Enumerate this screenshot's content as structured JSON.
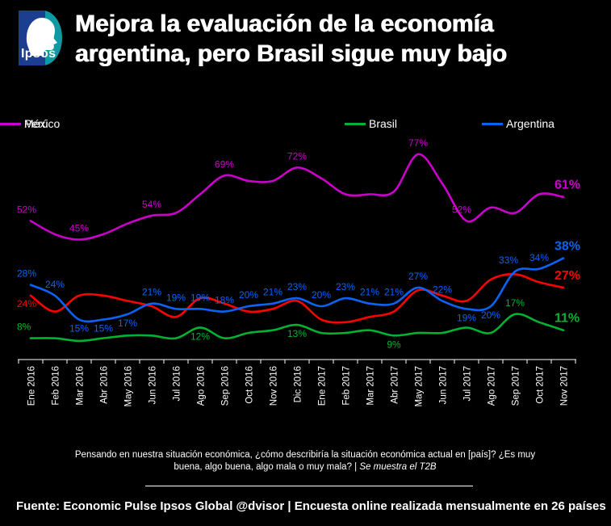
{
  "header": {
    "logo_text": "Ipsos",
    "title_line1": "Mejora la evaluación de la economía",
    "title_line2": "argentina, pero Brasil sigue muy bajo"
  },
  "chart_data": {
    "type": "line",
    "categories": [
      "Ene 2016",
      "Feb 2016",
      "Mar 2016",
      "Abr 2016",
      "May 2016",
      "Jun 2016",
      "Jul 2016",
      "Ago 2016",
      "Sep 2016",
      "Oct 2016",
      "Nov 2016",
      "Dic 2016",
      "Ene 2017",
      "Feb 2017",
      "Mar 2017",
      "Abr 2017",
      "May 2017",
      "Jun 2017",
      "Jul 2017",
      "Ago 2017",
      "Sep 2017",
      "Oct 2017",
      "Nov 2017"
    ],
    "ylim": [
      0,
      85
    ],
    "grid": false,
    "legend_position": "top",
    "background": "#000000",
    "axis_color": "#ffffff",
    "x_label_rotation": -90,
    "draw_order": [
      0,
      2,
      3,
      1
    ],
    "series": [
      {
        "name": "Brasil",
        "color": "#00b232",
        "values": [
          8,
          8,
          7,
          8,
          9,
          9,
          8,
          12,
          8,
          10,
          11,
          13,
          10,
          10,
          11,
          9,
          10,
          10,
          12,
          10,
          17,
          14,
          11
        ],
        "labels": [
          {
            "i": 0,
            "t": "8%",
            "pos": "above"
          },
          {
            "i": 7,
            "t": "12%",
            "pos": "below"
          },
          {
            "i": 11,
            "t": "13%",
            "pos": "below"
          },
          {
            "i": 15,
            "t": "9%",
            "pos": "below"
          },
          {
            "i": 20,
            "t": "17%",
            "pos": "above"
          },
          {
            "i": 22,
            "t": "11%",
            "pos": "end"
          }
        ]
      },
      {
        "name": "Argentina",
        "color": "#0b63f5",
        "values": [
          28,
          24,
          15,
          15,
          17,
          21,
          19,
          19,
          18,
          20,
          21,
          23,
          20,
          23,
          21,
          21,
          27,
          22,
          19,
          20,
          33,
          34,
          38
        ],
        "labels": [
          {
            "i": 0,
            "t": "28%",
            "pos": "above"
          },
          {
            "i": 1,
            "t": "24%",
            "pos": "above"
          },
          {
            "i": 2,
            "t": "15%",
            "pos": "below"
          },
          {
            "i": 3,
            "t": "15%",
            "pos": "below"
          },
          {
            "i": 4,
            "t": "17%",
            "pos": "below"
          },
          {
            "i": 5,
            "t": "21%",
            "pos": "above"
          },
          {
            "i": 6,
            "t": "19%",
            "pos": "above"
          },
          {
            "i": 7,
            "t": "19%",
            "pos": "above"
          },
          {
            "i": 8,
            "t": "18%",
            "pos": "above"
          },
          {
            "i": 9,
            "t": "20%",
            "pos": "above"
          },
          {
            "i": 10,
            "t": "21%",
            "pos": "above"
          },
          {
            "i": 11,
            "t": "23%",
            "pos": "above"
          },
          {
            "i": 12,
            "t": "20%",
            "pos": "above"
          },
          {
            "i": 13,
            "t": "23%",
            "pos": "above"
          },
          {
            "i": 14,
            "t": "21%",
            "pos": "above"
          },
          {
            "i": 15,
            "t": "21%",
            "pos": "above"
          },
          {
            "i": 16,
            "t": "27%",
            "pos": "above"
          },
          {
            "i": 17,
            "t": "22%",
            "pos": "above"
          },
          {
            "i": 18,
            "t": "19%",
            "pos": "below"
          },
          {
            "i": 19,
            "t": "20%",
            "pos": "below"
          },
          {
            "i": 20,
            "t": "33%",
            "pos": "above",
            "dx": -8
          },
          {
            "i": 21,
            "t": "34%",
            "pos": "above"
          },
          {
            "i": 22,
            "t": "38%",
            "pos": "end"
          }
        ]
      },
      {
        "name": "México",
        "color": "#fe0000",
        "values": [
          24,
          18,
          24,
          24,
          22,
          20,
          16,
          23,
          21,
          18,
          19,
          22,
          15,
          14,
          16,
          18,
          26,
          24,
          22,
          30,
          32,
          29,
          27
        ],
        "labels": [
          {
            "i": 0,
            "t": "24%",
            "pos": "below"
          },
          {
            "i": 22,
            "t": "27%",
            "pos": "end"
          }
        ]
      },
      {
        "name": "Perú",
        "color": "#cc00cc",
        "values": [
          52,
          47,
          45,
          47,
          51,
          54,
          55,
          62,
          69,
          67,
          67,
          72,
          68,
          62,
          62,
          63,
          77,
          66,
          52,
          57,
          55,
          62,
          61
        ],
        "labels": [
          {
            "i": 0,
            "t": "52%",
            "pos": "above"
          },
          {
            "i": 2,
            "t": "45%",
            "pos": "above"
          },
          {
            "i": 5,
            "t": "54%",
            "pos": "above"
          },
          {
            "i": 8,
            "t": "69%",
            "pos": "above"
          },
          {
            "i": 11,
            "t": "72%",
            "pos": "above"
          },
          {
            "i": 16,
            "t": "77%",
            "pos": "above"
          },
          {
            "i": 18,
            "t": "52%",
            "pos": "above",
            "dx": -6
          },
          {
            "i": 22,
            "t": "61%",
            "pos": "end"
          }
        ]
      }
    ]
  },
  "footer": {
    "question_line1": "Pensando en nuestra situación económica, ¿cómo describiría la situación económica actual en [país]? ¿Es muy",
    "question_line2": "buena, algo buena, algo mala o muy mala? | ",
    "question_note": "Se muestra el T2B",
    "source": "Fuente: Economic Pulse Ipsos Global @dvisor | Encuesta online realizada mensualmente en 26 países"
  }
}
